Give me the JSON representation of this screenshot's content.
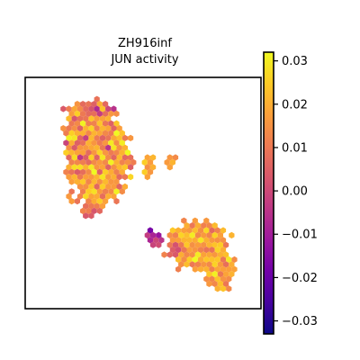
{
  "chart_data": {
    "type": "scatter",
    "title": [
      "ZH916inf",
      "JUN activity"
    ],
    "xlabel": "",
    "ylabel": "",
    "axes_ticks_visible": false,
    "grid": false,
    "marker": "hexagon",
    "colormap": "plasma",
    "colormap_stops": [
      "#0d0887",
      "#46039f",
      "#7201a8",
      "#9c179e",
      "#bd3786",
      "#d8576b",
      "#ed7953",
      "#fb9f3a",
      "#fdca26",
      "#f0f921"
    ],
    "colorbar": {
      "position": "right",
      "vmin": -0.033,
      "vmax": 0.032,
      "ticks": [
        0.03,
        0.02,
        0.01,
        0.0,
        -0.01,
        -0.02,
        -0.03
      ],
      "tick_labels": [
        "0.03",
        "0.02",
        "0.01",
        "0.00",
        "−0.01",
        "−0.02",
        "−0.03"
      ]
    },
    "regions": [
      {
        "cx": 0.3,
        "cy": 0.66,
        "rx": 0.16,
        "ry": 0.27,
        "mean": 0.016,
        "spread": 0.014
      },
      {
        "cx": 0.23,
        "cy": 0.76,
        "rx": 0.08,
        "ry": 0.16,
        "mean": 0.014,
        "spread": 0.014
      },
      {
        "cx": 0.27,
        "cy": 0.85,
        "rx": 0.13,
        "ry": 0.06,
        "mean": 0.008,
        "spread": 0.015
      },
      {
        "cx": 0.31,
        "cy": 0.53,
        "rx": 0.1,
        "ry": 0.1,
        "mean": 0.017,
        "spread": 0.012
      },
      {
        "cx": 0.28,
        "cy": 0.44,
        "rx": 0.05,
        "ry": 0.05,
        "mean": 0.01,
        "spread": 0.012
      },
      {
        "cx": 0.52,
        "cy": 0.61,
        "rx": 0.03,
        "ry": 0.08,
        "mean": 0.018,
        "spread": 0.01
      },
      {
        "cx": 0.43,
        "cy": 0.64,
        "rx": 0.04,
        "ry": 0.04,
        "mean": 0.012,
        "spread": 0.012
      },
      {
        "cx": 0.62,
        "cy": 0.64,
        "rx": 0.03,
        "ry": 0.03,
        "mean": 0.015,
        "spread": 0.01
      },
      {
        "cx": 0.73,
        "cy": 0.27,
        "rx": 0.16,
        "ry": 0.13,
        "mean": 0.018,
        "spread": 0.011
      },
      {
        "cx": 0.82,
        "cy": 0.18,
        "rx": 0.09,
        "ry": 0.12,
        "mean": 0.019,
        "spread": 0.009
      },
      {
        "cx": 0.66,
        "cy": 0.26,
        "rx": 0.07,
        "ry": 0.07,
        "mean": 0.01,
        "spread": 0.014
      },
      {
        "cx": 0.55,
        "cy": 0.3,
        "rx": 0.04,
        "ry": 0.05,
        "mean": 0.004,
        "spread": 0.015
      }
    ]
  }
}
